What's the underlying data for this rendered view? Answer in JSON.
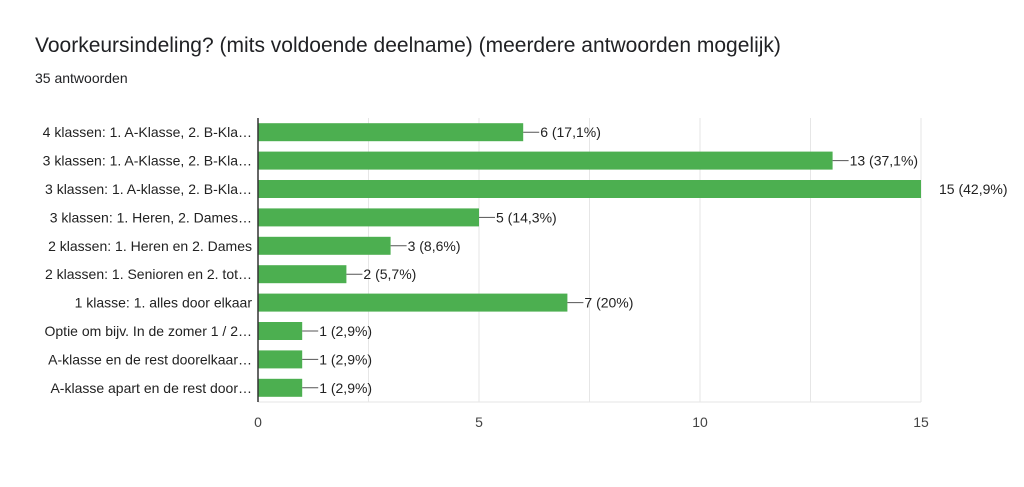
{
  "header": {
    "title": "Voorkeursindeling? (mits voldoende deelname) (meerdere antwoorden mogelijk)",
    "subtitle": "35 antwoorden"
  },
  "colors": {
    "bar": "#4caf50",
    "grid": "#e6e6e6",
    "axis": "#333333",
    "leader": "#555555"
  },
  "chart_data": {
    "type": "bar",
    "orientation": "horizontal",
    "categories": [
      "4 klassen: 1. A-Klasse, 2. B-Kla…",
      "3 klassen: 1. A-Klasse, 2. B-Kla…",
      "3 klassen: 1. A-klasse, 2. B-Kla…",
      "3 klassen: 1. Heren, 2. Dames…",
      "2 klassen: 1. Heren en 2. Dames",
      "2 klassen: 1. Senioren en 2. tot…",
      "1 klasse: 1. alles door elkaar",
      "Optie om bijv. In de zomer 1 / 2…",
      "A-klasse en de rest doorelkaar…",
      "A-klasse apart en de rest door…"
    ],
    "values": [
      6,
      13,
      15,
      5,
      3,
      2,
      7,
      1,
      1,
      1
    ],
    "value_labels": [
      "6 (17,1%)",
      "13 (37,1%)",
      "15 (42,9%)",
      "5 (14,3%)",
      "3 (8,6%)",
      "2 (5,7%)",
      "7 (20%)",
      "1 (2,9%)",
      "1 (2,9%)",
      "1 (2,9%)"
    ],
    "xlim": [
      0,
      15
    ],
    "xticks": [
      0,
      5,
      10,
      15
    ],
    "xtick_labels": [
      "0",
      "5",
      "10",
      "15"
    ],
    "grid": true
  }
}
